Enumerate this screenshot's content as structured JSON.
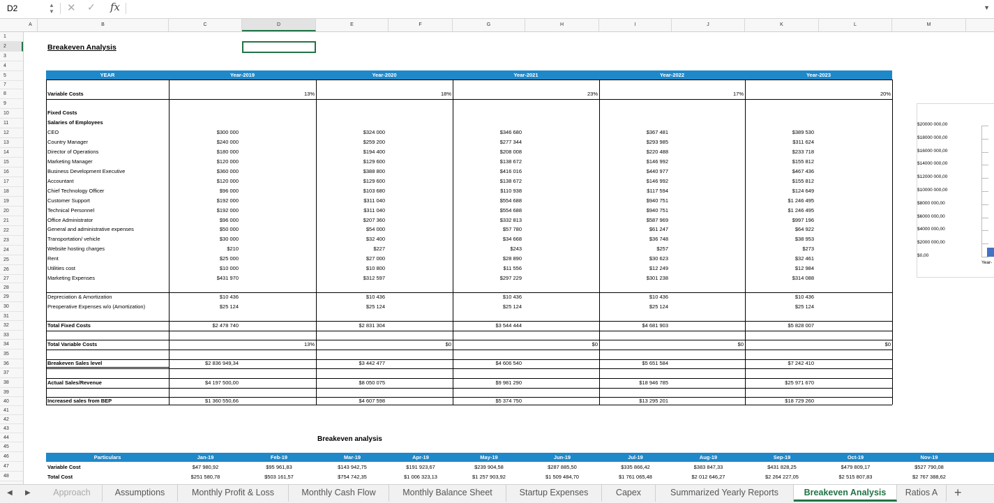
{
  "formula_bar": {
    "cell_ref": "D2",
    "fx_label": "fx"
  },
  "columns": [
    "A",
    "B",
    "C",
    "D",
    "E",
    "F",
    "G",
    "H",
    "I",
    "J",
    "K",
    "L",
    "M"
  ],
  "selected_column": "D",
  "rows": [
    "1",
    "2",
    "3",
    "4",
    "5",
    "7",
    "8",
    "9",
    "10",
    "11",
    "12",
    "13",
    "14",
    "15",
    "16",
    "17",
    "18",
    "19",
    "20",
    "21",
    "22",
    "23",
    "24",
    "25",
    "26",
    "27",
    "28",
    "29",
    "30",
    "31",
    "32",
    "33",
    "34",
    "35",
    "36",
    "37",
    "38",
    "39",
    "40",
    "41",
    "42",
    "43",
    "44",
    "45",
    "46",
    "47",
    "48"
  ],
  "selected_row": "2",
  "title": "Breakeven Analysis",
  "table": {
    "year_header": "YEAR",
    "years": [
      "Year-2019",
      "Year-2020",
      "Year-2021",
      "Year-2022",
      "Year-2023"
    ],
    "variable_costs": {
      "label": "Variable Costs",
      "values": [
        "13%",
        "18%",
        "23%",
        "17%",
        "20%"
      ]
    },
    "fixed_costs_label": "Fixed Costs",
    "salaries_label": "Salaries of Employees",
    "items": [
      {
        "label": "CEO",
        "values": [
          "$300 000",
          "$324 000",
          "$346 680",
          "$367 481",
          "$389 530"
        ]
      },
      {
        "label": "Country Manager",
        "values": [
          "$240 000",
          "$259 200",
          "$277 344",
          "$293 985",
          "$311 624"
        ]
      },
      {
        "label": "Director of Operations",
        "values": [
          "$180 000",
          "$194 400",
          "$208 008",
          "$220 488",
          "$233 718"
        ]
      },
      {
        "label": "Marketing Manager",
        "values": [
          "$120 000",
          "$129 600",
          "$138 672",
          "$146 992",
          "$155 812"
        ]
      },
      {
        "label": "Business Development Executive",
        "values": [
          "$360 000",
          "$388 800",
          "$416 016",
          "$440 977",
          "$467 436"
        ]
      },
      {
        "label": "Accountant",
        "values": [
          "$120 000",
          "$129 600",
          "$138 672",
          "$146 992",
          "$155 812"
        ]
      },
      {
        "label": "Chief Technology Officer",
        "values": [
          "$96 000",
          "$103 680",
          "$110 938",
          "$117 594",
          "$124 649"
        ]
      },
      {
        "label": "Customer Support",
        "values": [
          "$192 000",
          "$311 040",
          "$554 688",
          "$940 751",
          "$1 246 495"
        ]
      },
      {
        "label": "Technical Personnel",
        "values": [
          "$192 000",
          "$311 040",
          "$554 688",
          "$940 751",
          "$1 246 495"
        ]
      },
      {
        "label": "Office Administrator",
        "values": [
          "$96 000",
          "$207 360",
          "$332 813",
          "$587 969",
          "$997 196"
        ]
      },
      {
        "label": "General and administrative expenses",
        "values": [
          "$50 000",
          "$54 000",
          "$57 780",
          "$61 247",
          "$64 922"
        ]
      },
      {
        "label": "Transportation/ vehicle",
        "values": [
          "$30 000",
          "$32 400",
          "$34 668",
          "$36 748",
          "$38 953"
        ]
      },
      {
        "label": "Website hosting charges",
        "values": [
          "$210",
          "$227",
          "$243",
          "$257",
          "$273"
        ]
      },
      {
        "label": "Rent",
        "values": [
          "$25 000",
          "$27 000",
          "$28 890",
          "$30 623",
          "$32 461"
        ]
      },
      {
        "label": "Utilities cost",
        "values": [
          "$10 000",
          "$10 800",
          "$11 556",
          "$12 249",
          "$12 984"
        ]
      },
      {
        "label": "Marketing Expenses",
        "values": [
          "$431 970",
          "$312 597",
          "$297 229",
          "$301 238",
          "$314 088"
        ]
      }
    ],
    "depreciation": {
      "label": "Depreciation & Amortization",
      "values": [
        "$10 436",
        "$10 436",
        "$10 436",
        "$10 436",
        "$10 436"
      ]
    },
    "preoperative": {
      "label": "Preoperative Expenses w/o (Amortization)",
      "values": [
        "$25 124",
        "$25 124",
        "$25 124",
        "$25 124",
        "$25 124"
      ]
    },
    "total_fixed": {
      "label": "Total Fixed Costs",
      "values": [
        "$2 478 740",
        "$2 831 304",
        "$3 544 444",
        "$4 681 903",
        "$5 828 007"
      ]
    },
    "total_variable": {
      "label": "Total Variable Costs",
      "values": [
        "13%",
        "$0",
        "$0",
        "$0",
        "$0"
      ]
    },
    "breakeven": {
      "label": "Breakeven Sales level",
      "values": [
        "$2 836 949,34",
        "$3 442 477",
        "$4 606 540",
        "$5 651 584",
        "$7 242 410"
      ]
    },
    "actual_sales": {
      "label": "Actual Sales/Revenue",
      "values": [
        "$4 197 500,00",
        "$8 050 075",
        "$9 981 290",
        "$18 946 785",
        "$25 971 670"
      ]
    },
    "increased": {
      "label": "Increased sales from BEP",
      "values": [
        "$1 360 550,66",
        "$4 607 598",
        "$5 374 750",
        "$13 295 201",
        "$18 729 260"
      ]
    }
  },
  "chart_data": {
    "type": "bar",
    "categories": [
      "Year-"
    ],
    "y_ticks": [
      "$20000 000,00",
      "$18000 000,00",
      "$16000 000,00",
      "$14000 000,00",
      "$12000 000,00",
      "$10000 000,00",
      "$8000 000,00",
      "$6000 000,00",
      "$4000 000,00",
      "$2000 000,00",
      "$0,00"
    ],
    "ylim": [
      0,
      20000000
    ],
    "series": [
      {
        "values": [
          1360550.66
        ]
      }
    ],
    "bar_color": "#4472c4"
  },
  "monthly": {
    "title": "Breakeven analysis",
    "particulars": "Particulars",
    "months": [
      "Jan-19",
      "Feb-19",
      "Mar-19",
      "Apr-19",
      "May-19",
      "Jun-19",
      "Jul-19",
      "Aug-19",
      "Sep-19",
      "Oct-19",
      "Nov-19"
    ],
    "rows": [
      {
        "label": "Variable Cost",
        "values": [
          "$47 980,92",
          "$95 961,83",
          "$143 942,75",
          "$191 923,67",
          "$239 904,58",
          "$287 885,50",
          "$335 866,42",
          "$383 847,33",
          "$431 828,25",
          "$479 809,17",
          "$527 790,08"
        ]
      },
      {
        "label": "Total Cost",
        "values": [
          "$251 580,78",
          "$503 161,57",
          "$754 742,35",
          "$1 006 323,13",
          "$1 257 903,92",
          "$1 509 484,70",
          "$1 761 065,48",
          "$2 012 646,27",
          "$2 264 227,05",
          "$2 515 807,83",
          "$2 767 388,62"
        ]
      }
    ]
  },
  "sheet_tabs": [
    "Approach",
    "Assumptions",
    "Monthly Profit & Loss",
    "Monthly Cash Flow",
    "Monthly Balance Sheet",
    "Startup Expenses",
    "Capex",
    "Summarized Yearly Reports",
    "Breakeven Analysis",
    "Ratios A"
  ],
  "active_tab": "Breakeven Analysis",
  "accent_color": "#217346",
  "header_color": "#1f88c9"
}
